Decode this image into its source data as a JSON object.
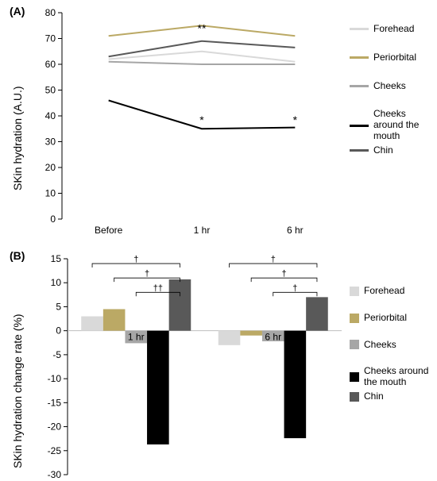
{
  "panel_labels": {
    "A": "(A)",
    "B": "(B)"
  },
  "panelA": {
    "type": "line",
    "x_categories": [
      "Before",
      "1 hr",
      "6 hr"
    ],
    "ylabel": "SKin hydration (A.U.)",
    "ylim": [
      0,
      80
    ],
    "ytick_step": 10,
    "label_fontsize": 14,
    "tick_fontsize": 12,
    "series": [
      {
        "name": "Forehead",
        "color": "#d9d9d9",
        "values": [
          62,
          65,
          61
        ]
      },
      {
        "name": "Periorbital",
        "color": "#bba965",
        "values": [
          71,
          75,
          71
        ]
      },
      {
        "name": "Cheeks",
        "color": "#a6a6a6",
        "values": [
          61,
          60,
          60
        ]
      },
      {
        "name": "Cheeks around the mouth",
        "color": "#000000",
        "values": [
          46,
          35,
          35.5
        ]
      },
      {
        "name": "Chin",
        "color": "#595959",
        "values": [
          63,
          69,
          66.5
        ]
      }
    ],
    "annotations": [
      {
        "text": "**",
        "x_index": 1,
        "y": 72.5,
        "target": "Chin"
      },
      {
        "text": "*",
        "x_index": 1,
        "y": 37,
        "target": "Cheeks around the mouth"
      },
      {
        "text": "*",
        "x_index": 2,
        "y": 37,
        "target": "Cheeks around the mouth"
      }
    ],
    "line_width": 2,
    "background_color": "#ffffff"
  },
  "panelB": {
    "type": "bar",
    "groups": [
      "1 hr",
      "6 hr"
    ],
    "ylabel": "SKin hydration change rate (%)",
    "ylim": [
      -30,
      15
    ],
    "ytick_step": 5,
    "label_fontsize": 14,
    "tick_fontsize": 12,
    "series": [
      {
        "name": "Forehead",
        "color": "#d9d9d9",
        "values": [
          3,
          -3
        ]
      },
      {
        "name": "Periorbital",
        "color": "#bba965",
        "values": [
          4.5,
          -1
        ]
      },
      {
        "name": "Cheeks",
        "color": "#a6a6a6",
        "values": [
          -2.6,
          -2.2
        ]
      },
      {
        "name": "Cheeks around the mouth",
        "color": "#000000",
        "values": [
          -23.7,
          -22.4
        ]
      },
      {
        "name": "Chin",
        "color": "#595959",
        "values": [
          10.7,
          7
        ]
      }
    ],
    "brackets": {
      "group0": [
        {
          "text": "†",
          "from": 0,
          "to": 4,
          "y": 14
        },
        {
          "text": "†",
          "from": 1,
          "to": 4,
          "y": 11
        },
        {
          "text": "††",
          "from": 2,
          "to": 4,
          "y": 8
        }
      ],
      "group1": [
        {
          "text": "†",
          "from": 0,
          "to": 4,
          "y": 14
        },
        {
          "text": "†",
          "from": 1,
          "to": 4,
          "y": 11
        },
        {
          "text": "†",
          "from": 2,
          "to": 4,
          "y": 8
        }
      ]
    },
    "bar_width": 0.16,
    "zero_line_color": "#bfbfbf",
    "background_color": "#ffffff"
  },
  "legendA": {
    "items": [
      {
        "label": "Forehead",
        "color": "#d9d9d9"
      },
      {
        "label": "Periorbital",
        "color": "#bba965"
      },
      {
        "label": "Cheeks",
        "color": "#a6a6a6"
      },
      {
        "label": "Cheeks around the mouth",
        "color": "#000000"
      },
      {
        "label": "Chin",
        "color": "#595959"
      }
    ]
  },
  "legendB": {
    "items": [
      {
        "label": "Forehead",
        "color": "#d9d9d9"
      },
      {
        "label": "Periorbital",
        "color": "#bba965"
      },
      {
        "label": "Cheeks",
        "color": "#a6a6a6"
      },
      {
        "label": "Cheeks around the mouth",
        "color": "#000000"
      },
      {
        "label": "Chin",
        "color": "#595959"
      }
    ]
  }
}
